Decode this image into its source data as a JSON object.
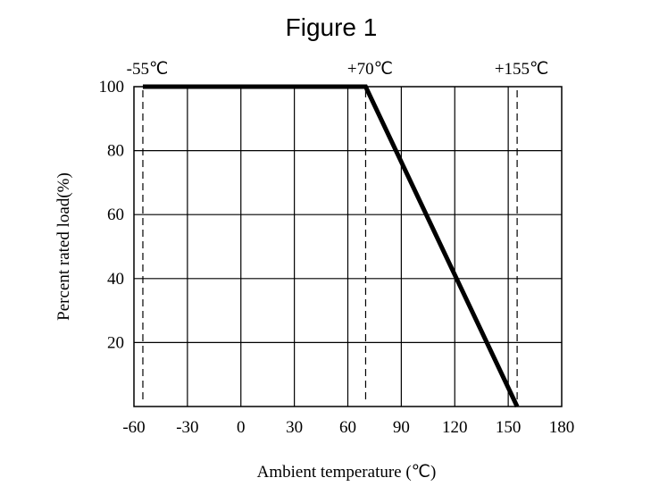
{
  "chart_data": {
    "type": "line",
    "title": "Figure 1",
    "xlabel": "Ambient temperature (℃)",
    "ylabel": "Percent rated load(%)",
    "xlim": [
      -60,
      180
    ],
    "ylim": [
      0,
      100
    ],
    "x_ticks": [
      -60,
      -30,
      0,
      30,
      60,
      90,
      120,
      150,
      180
    ],
    "y_ticks": [
      20,
      40,
      60,
      80,
      100
    ],
    "grid": true,
    "series": [
      {
        "points": [
          [
            -55,
            100
          ],
          [
            70,
            100
          ],
          [
            155,
            0
          ]
        ]
      }
    ],
    "reference_lines": [
      {
        "x": -55,
        "label": "-55℃"
      },
      {
        "x": 70,
        "label": "+70℃"
      },
      {
        "x": 155,
        "label": "+155℃"
      }
    ]
  }
}
